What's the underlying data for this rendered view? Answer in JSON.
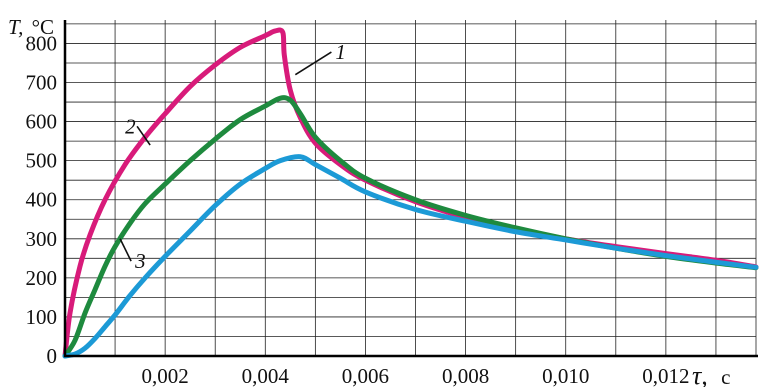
{
  "chart_data": {
    "type": "line",
    "ylabel_var": "T,",
    "ylabel_unit": "°C",
    "xlabel_var": "τ,",
    "xlabel_unit": "c",
    "xlim": [
      0,
      0.0138
    ],
    "ylim": [
      0,
      860
    ],
    "x_ticks": [
      0.002,
      0.004,
      0.006,
      0.008,
      0.01,
      0.012
    ],
    "x_tick_labels": [
      "0,002",
      "0,004",
      "0,006",
      "0,008",
      "0,010",
      "0,012"
    ],
    "y_ticks": [
      0,
      100,
      200,
      300,
      400,
      500,
      600,
      700,
      800
    ],
    "y_tick_labels": [
      "0",
      "100",
      "200",
      "300",
      "400",
      "500",
      "600",
      "700",
      "800"
    ],
    "grid": true,
    "series": [
      {
        "name": "1",
        "color": "#d81b7a",
        "points": [
          [
            0,
            0
          ],
          [
            0.0001,
            110
          ],
          [
            0.0003,
            230
          ],
          [
            0.0005,
            310
          ],
          [
            0.0008,
            400
          ],
          [
            0.0012,
            490
          ],
          [
            0.0016,
            560
          ],
          [
            0.002,
            620
          ],
          [
            0.0025,
            690
          ],
          [
            0.003,
            745
          ],
          [
            0.0035,
            790
          ],
          [
            0.004,
            820
          ],
          [
            0.0042,
            832
          ],
          [
            0.00435,
            828
          ],
          [
            0.00438,
            770
          ],
          [
            0.0045,
            680
          ],
          [
            0.0047,
            610
          ],
          [
            0.005,
            545
          ],
          [
            0.0055,
            490
          ],
          [
            0.006,
            450
          ],
          [
            0.007,
            395
          ],
          [
            0.008,
            355
          ],
          [
            0.009,
            325
          ],
          [
            0.01,
            300
          ],
          [
            0.011,
            280
          ],
          [
            0.012,
            262
          ],
          [
            0.013,
            245
          ],
          [
            0.0138,
            228
          ]
        ]
      },
      {
        "name": "2",
        "color": "#1e8a3e",
        "points": [
          [
            0,
            0
          ],
          [
            0.0002,
            40
          ],
          [
            0.0004,
            110
          ],
          [
            0.0006,
            170
          ],
          [
            0.0008,
            230
          ],
          [
            0.001,
            280
          ],
          [
            0.0013,
            340
          ],
          [
            0.0016,
            390
          ],
          [
            0.002,
            440
          ],
          [
            0.0025,
            500
          ],
          [
            0.003,
            555
          ],
          [
            0.0035,
            605
          ],
          [
            0.004,
            640
          ],
          [
            0.0043,
            660
          ],
          [
            0.0045,
            655
          ],
          [
            0.0047,
            620
          ],
          [
            0.005,
            560
          ],
          [
            0.0055,
            500
          ],
          [
            0.006,
            455
          ],
          [
            0.007,
            400
          ],
          [
            0.008,
            360
          ],
          [
            0.009,
            328
          ],
          [
            0.01,
            300
          ],
          [
            0.011,
            276
          ],
          [
            0.012,
            255
          ],
          [
            0.013,
            238
          ],
          [
            0.0138,
            226
          ]
        ]
      },
      {
        "name": "3",
        "color": "#1c9ad6",
        "points": [
          [
            0,
            0
          ],
          [
            0.0002,
            5
          ],
          [
            0.0004,
            20
          ],
          [
            0.0006,
            45
          ],
          [
            0.0008,
            75
          ],
          [
            0.001,
            105
          ],
          [
            0.0013,
            155
          ],
          [
            0.0016,
            200
          ],
          [
            0.002,
            255
          ],
          [
            0.0025,
            320
          ],
          [
            0.003,
            385
          ],
          [
            0.0035,
            440
          ],
          [
            0.004,
            480
          ],
          [
            0.0043,
            500
          ],
          [
            0.0047,
            510
          ],
          [
            0.005,
            490
          ],
          [
            0.0055,
            455
          ],
          [
            0.006,
            420
          ],
          [
            0.007,
            375
          ],
          [
            0.008,
            345
          ],
          [
            0.009,
            318
          ],
          [
            0.01,
            297
          ],
          [
            0.011,
            276
          ],
          [
            0.012,
            257
          ],
          [
            0.013,
            240
          ],
          [
            0.0138,
            227
          ]
        ]
      }
    ],
    "labels": [
      {
        "text": "1",
        "x": 0.0054,
        "y": 760,
        "lx": 0.0046,
        "ly": 720
      },
      {
        "text": "2",
        "x": 0.0012,
        "y": 570,
        "lx": 0.0017,
        "ly": 540
      },
      {
        "text": "3",
        "x": 0.0014,
        "y": 225,
        "lx": 0.0011,
        "ly": 300
      }
    ]
  }
}
